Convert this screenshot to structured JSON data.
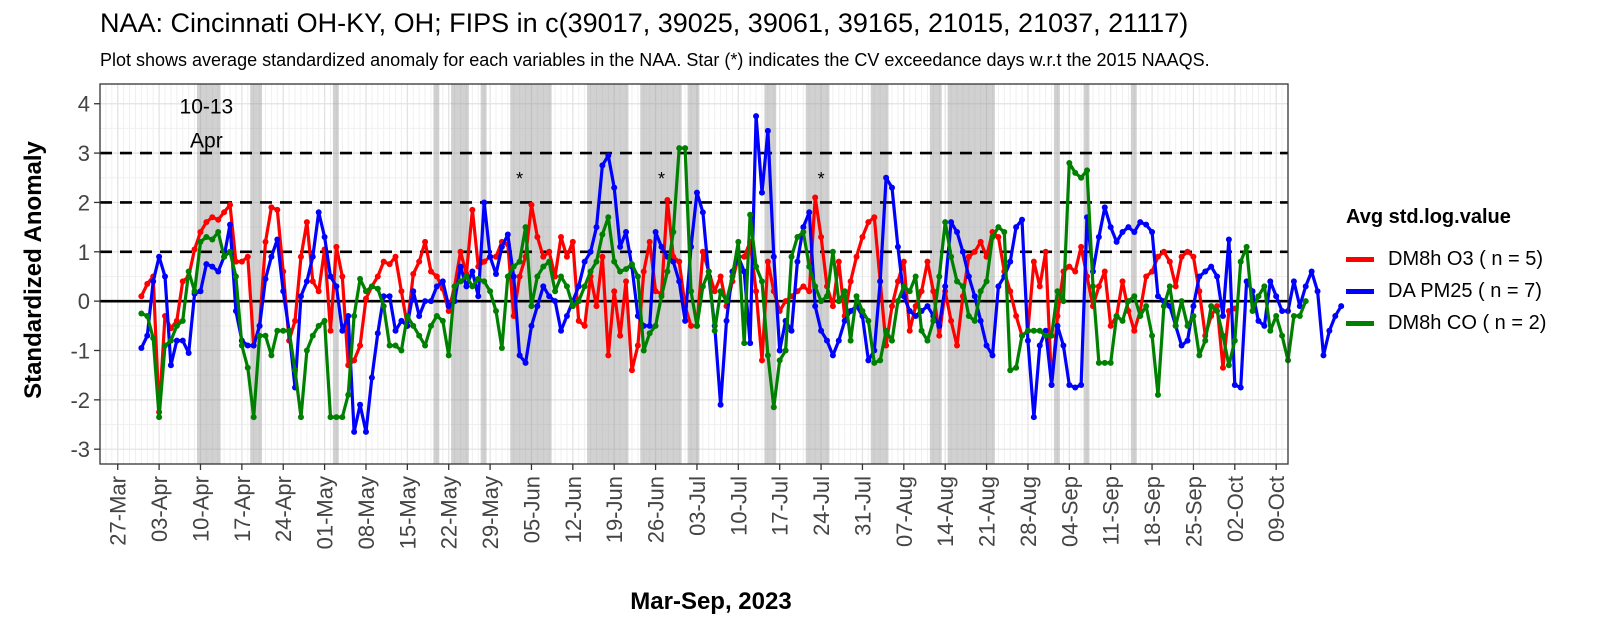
{
  "chart_data": {
    "type": "line",
    "title": "NAA: Cincinnati OH-KY, OH; FIPS in c(39017, 39025, 39061, 39165, 21015, 21037, 21117)",
    "subtitle": "Plot shows average standardized anomaly for each variables in the NAA. Star (*) indicates the CV exceedance days w.r.t the 2015 NAAQS.",
    "xlabel": "Mar-Sep, 2023",
    "ylabel": "Standardized Anomaly",
    "ylim": [
      -3.3,
      4.4
    ],
    "y_ticks": [
      "4",
      "3",
      "2",
      "1",
      "0",
      "-1",
      "-2",
      "-3"
    ],
    "y_tick_values": [
      4,
      3,
      2,
      1,
      0,
      -1,
      -2,
      -3
    ],
    "x_start_date": "2023-03-24",
    "x_end_date": "2023-10-11",
    "x_tick_dates": [
      "2023-03-27",
      "2023-04-03",
      "2023-04-10",
      "2023-04-17",
      "2023-04-24",
      "2023-05-01",
      "2023-05-08",
      "2023-05-15",
      "2023-05-22",
      "2023-05-29",
      "2023-06-05",
      "2023-06-12",
      "2023-06-19",
      "2023-06-26",
      "2023-07-03",
      "2023-07-10",
      "2023-07-17",
      "2023-07-24",
      "2023-07-31",
      "2023-08-07",
      "2023-08-14",
      "2023-08-21",
      "2023-08-28",
      "2023-09-04",
      "2023-09-11",
      "2023-09-18",
      "2023-09-25",
      "2023-10-02",
      "2023-10-09"
    ],
    "x_tick_labels": [
      "27-Mar",
      "03-Apr",
      "10-Apr",
      "17-Apr",
      "24-Apr",
      "01-May",
      "08-May",
      "15-May",
      "22-May",
      "29-May",
      "05-Jun",
      "12-Jun",
      "19-Jun",
      "26-Jun",
      "03-Jul",
      "10-Jul",
      "17-Jul",
      "24-Jul",
      "31-Jul",
      "07-Aug",
      "14-Aug",
      "21-Aug",
      "28-Aug",
      "04-Sep",
      "11-Sep",
      "18-Sep",
      "25-Sep",
      "02-Oct",
      "09-Oct"
    ],
    "reference_lines": [
      1,
      2,
      3
    ],
    "zero_line": 0,
    "grid": true,
    "legend": {
      "title": "Avg std.log.value",
      "placement": "right"
    },
    "annotation": {
      "text_line1": "10-13",
      "text_line2": "Apr",
      "date": "2023-04-11",
      "y": 3.8
    },
    "exceedance_marker": "*",
    "exceedance_markers": [
      {
        "date": "2023-06-03",
        "y": 2.35
      },
      {
        "date": "2023-06-27",
        "y": 2.35
      },
      {
        "date": "2023-07-24",
        "y": 2.35
      }
    ],
    "shaded_periods": [
      [
        "2023-04-10",
        "2023-04-13"
      ],
      [
        "2023-04-19",
        "2023-04-20"
      ],
      [
        "2023-05-03",
        "2023-05-03"
      ],
      [
        "2023-05-20",
        "2023-05-20"
      ],
      [
        "2023-05-23",
        "2023-05-25"
      ],
      [
        "2023-05-28",
        "2023-05-28"
      ],
      [
        "2023-06-02",
        "2023-06-08"
      ],
      [
        "2023-06-15",
        "2023-06-21"
      ],
      [
        "2023-06-24",
        "2023-06-30"
      ],
      [
        "2023-07-02",
        "2023-07-03"
      ],
      [
        "2023-07-15",
        "2023-07-16"
      ],
      [
        "2023-07-22",
        "2023-07-25"
      ],
      [
        "2023-08-02",
        "2023-08-04"
      ],
      [
        "2023-08-12",
        "2023-08-13"
      ],
      [
        "2023-08-15",
        "2023-08-22"
      ],
      [
        "2023-09-02",
        "2023-09-02"
      ],
      [
        "2023-09-07",
        "2023-09-07"
      ],
      [
        "2023-09-15",
        "2023-09-15"
      ]
    ],
    "series": [
      {
        "name": "DM8h O3 ( n = 5)",
        "color": "#ff0000",
        "start_date": "2023-03-31",
        "values": [
          0.1,
          0.35,
          0.5,
          -2.25,
          -0.3,
          -0.55,
          -0.4,
          0.4,
          0.5,
          1.05,
          1.4,
          1.6,
          1.7,
          1.65,
          1.8,
          1.95,
          0.8,
          0.8,
          0.9,
          -0.9,
          -0.5,
          1.2,
          1.9,
          1.85,
          0.6,
          -0.8,
          -0.4,
          0.9,
          1.6,
          0.4,
          0.2,
          1.05,
          -0.6,
          1.1,
          0.5,
          -1.3,
          -1.2,
          -0.9,
          0.05,
          0.3,
          0.5,
          0.8,
          0.75,
          0.9,
          0.2,
          -0.5,
          0.55,
          0.8,
          1.2,
          0.6,
          0.5,
          0.25,
          -0.2,
          0.3,
          1.0,
          0.55,
          1.85,
          0.7,
          0.8,
          0.9,
          0.9,
          1.2,
          1.15,
          -0.3,
          0.5,
          0.9,
          1.95,
          1.3,
          0.9,
          1.0,
          0.5,
          1.3,
          0.9,
          1.2,
          -0.4,
          -0.5,
          0.5,
          -0.1,
          0.9,
          -1.1,
          0.2,
          -0.7,
          0.4,
          -1.4,
          -0.9,
          0.6,
          1.2,
          0.2,
          0.15,
          2.05,
          0.9,
          0.8,
          -0.1,
          -0.5,
          -0.5,
          1.0,
          0.6,
          0.2,
          0.5,
          -0.1,
          0.4,
          0.9,
          0.9,
          1.2,
          0.2,
          -1.2,
          0.8,
          0.2,
          -0.2,
          0.0,
          0.1,
          0.2,
          0.3,
          0.2,
          2.1,
          1.3,
          0.3,
          -0.1,
          0.8,
          -0.3,
          0.4,
          0.9,
          1.3,
          1.6,
          1.7,
          0.4,
          -0.9,
          -0.1,
          0.4,
          0.8,
          -0.6,
          -0.1,
          0.2,
          0.8,
          0.2,
          -0.7,
          0.2,
          -0.4,
          -0.9,
          0.1,
          0.9,
          1.0,
          1.2,
          0.9,
          1.4,
          1.3,
          0.6,
          0.2,
          -0.3,
          -0.7,
          -0.6,
          0.8,
          0.3,
          1.0,
          -1.7,
          -0.3,
          0.6,
          0.7,
          0.6,
          1.1,
          0.5,
          -0.1,
          0.3,
          0.6,
          -0.5,
          -0.3,
          0.4,
          -0.2,
          -0.6,
          -0.2,
          0.5,
          0.6,
          0.9,
          1.0,
          0.8,
          0.3,
          0.9,
          1.0,
          0.9,
          0.2,
          -0.7,
          -0.3,
          -0.1,
          -1.35,
          -0.2,
          -0.15
        ]
      },
      {
        "name": "DA PM25 ( n = 7)",
        "color": "#0000ff",
        "start_date": "2023-03-31",
        "values": [
          -0.95,
          -0.7,
          0.4,
          0.9,
          0.5,
          -1.3,
          -0.8,
          -0.8,
          -1.05,
          0.15,
          0.2,
          0.75,
          0.7,
          0.6,
          0.9,
          1.55,
          -0.2,
          -0.8,
          -0.9,
          -0.9,
          -0.5,
          0.45,
          0.9,
          1.25,
          0.2,
          -0.6,
          -1.75,
          0.1,
          0.4,
          0.9,
          1.8,
          1.3,
          0.5,
          0.3,
          -0.6,
          -0.3,
          -2.65,
          -2.1,
          -2.65,
          -1.55,
          -0.65,
          0.1,
          0.1,
          -0.6,
          -0.4,
          -0.5,
          0.2,
          -0.3,
          0.0,
          0.0,
          0.3,
          0.4,
          -0.1,
          0.0,
          0.7,
          0.3,
          0.6,
          0.1,
          2.0,
          0.9,
          0.55,
          1.1,
          1.35,
          0.5,
          -1.1,
          -1.25,
          -0.5,
          -0.1,
          0.3,
          0.1,
          0.0,
          -0.6,
          -0.3,
          0.0,
          0.3,
          0.8,
          1.0,
          1.5,
          2.75,
          2.95,
          2.3,
          1.1,
          1.4,
          0.7,
          -0.3,
          -0.5,
          -0.5,
          1.4,
          1.1,
          0.9,
          0.8,
          0.4,
          -0.4,
          1.1,
          2.2,
          1.8,
          0.5,
          -0.5,
          -2.1,
          -0.4,
          0.6,
          0.9,
          0.6,
          -0.85,
          3.75,
          2.2,
          3.45,
          0.9,
          -1.0,
          -0.4,
          -0.6,
          0.8,
          1.5,
          1.8,
          -0.1,
          -0.6,
          -0.8,
          -1.1,
          -0.8,
          -0.4,
          -0.2,
          -0.1,
          -0.3,
          -1.2,
          -1.0,
          0.4,
          2.5,
          2.3,
          1.1,
          0.1,
          -0.2,
          -0.3,
          -0.2,
          -0.1,
          -0.3,
          -0.5,
          0.3,
          1.6,
          1.4,
          1.0,
          0.5,
          0.1,
          -0.4,
          -0.9,
          -1.1,
          0.3,
          0.5,
          0.8,
          1.5,
          1.65,
          -0.8,
          -2.35,
          -0.9,
          -0.6,
          -1.7,
          -0.5,
          -0.9,
          -1.7,
          -1.75,
          -1.7,
          1.7,
          0.6,
          1.3,
          1.9,
          1.5,
          1.2,
          1.4,
          1.5,
          1.4,
          1.6,
          1.55,
          1.4,
          0.1,
          0.0,
          -0.1,
          -0.5,
          -0.9,
          -0.8,
          -0.1,
          0.5,
          0.6,
          0.7,
          0.5,
          -0.3,
          1.25,
          -1.7,
          -1.75,
          0.4,
          0.2,
          -0.4,
          -0.5,
          0.4,
          0.1,
          -0.2,
          -0.2,
          0.4,
          -0.1,
          0.3,
          0.6,
          0.2,
          -1.1,
          -0.6,
          -0.3,
          -0.1
        ]
      },
      {
        "name": "DM8h CO ( n = 2)",
        "color": "#008000",
        "start_date": "2023-03-31",
        "values": [
          -0.25,
          -0.3,
          -0.75,
          -2.35,
          -0.9,
          -0.8,
          -0.5,
          -0.4,
          0.6,
          0.2,
          1.2,
          1.3,
          1.25,
          1.4,
          0.9,
          1.0,
          0.5,
          -0.9,
          -1.35,
          -2.35,
          -0.7,
          -0.7,
          -1.1,
          -0.6,
          -0.6,
          -0.6,
          -1.4,
          -2.35,
          -1.0,
          -0.7,
          -0.5,
          -0.4,
          -2.35,
          -2.35,
          -2.35,
          -1.9,
          -0.3,
          0.45,
          0.2,
          0.3,
          0.25,
          -0.1,
          -0.9,
          -0.9,
          -1.0,
          -0.3,
          -0.5,
          -0.7,
          -0.9,
          -0.5,
          -0.3,
          -0.4,
          -1.1,
          0.3,
          0.4,
          0.5,
          0.3,
          0.45,
          0.4,
          0.2,
          -0.2,
          -0.95,
          0.5,
          0.7,
          0.8,
          1.5,
          -0.1,
          0.5,
          0.7,
          0.8,
          0.2,
          0.5,
          0.3,
          -0.1,
          0.0,
          0.3,
          0.6,
          0.8,
          1.35,
          1.7,
          0.8,
          0.6,
          0.65,
          0.75,
          0.5,
          -1.0,
          -0.65,
          -0.5,
          0.1,
          0.6,
          1.4,
          3.1,
          3.1,
          0.2,
          -0.5,
          0.3,
          0.6,
          -0.6,
          0.2,
          0.0,
          0.5,
          1.2,
          -0.85,
          1.75,
          0.7,
          0.4,
          -1.1,
          -2.15,
          -1.2,
          -1.0,
          0.9,
          1.3,
          1.4,
          0.7,
          0.3,
          0.0,
          0.1,
          1.0,
          0.0,
          0.2,
          -0.8,
          0.1,
          -0.2,
          -0.4,
          -1.25,
          -1.2,
          -0.6,
          -0.8,
          0.0,
          0.3,
          0.2,
          0.5,
          -0.6,
          -0.8,
          -0.4,
          0.5,
          1.6,
          0.9,
          0.4,
          0.3,
          -0.3,
          -0.4,
          0.2,
          0.4,
          1.3,
          1.5,
          1.4,
          -1.4,
          -1.35,
          -0.7,
          -0.6,
          -0.6,
          -0.6,
          -0.7,
          -0.7,
          0.2,
          0.0,
          2.8,
          2.6,
          2.5,
          2.65,
          0.3,
          -1.25,
          -1.25,
          -1.25,
          -0.3,
          -0.4,
          0.0,
          0.1,
          -0.3,
          -0.1,
          -0.7,
          -1.9,
          -0.1,
          0.3,
          -0.5,
          0.0,
          -0.5,
          -0.3,
          -1.1,
          -0.8,
          -0.1,
          -0.2,
          -0.7,
          -1.3,
          -0.8,
          0.8,
          1.1,
          -0.2,
          0.1,
          0.3,
          -0.6,
          -0.3,
          -0.7,
          -1.2,
          -0.3,
          -0.3,
          0.0
        ]
      }
    ]
  }
}
